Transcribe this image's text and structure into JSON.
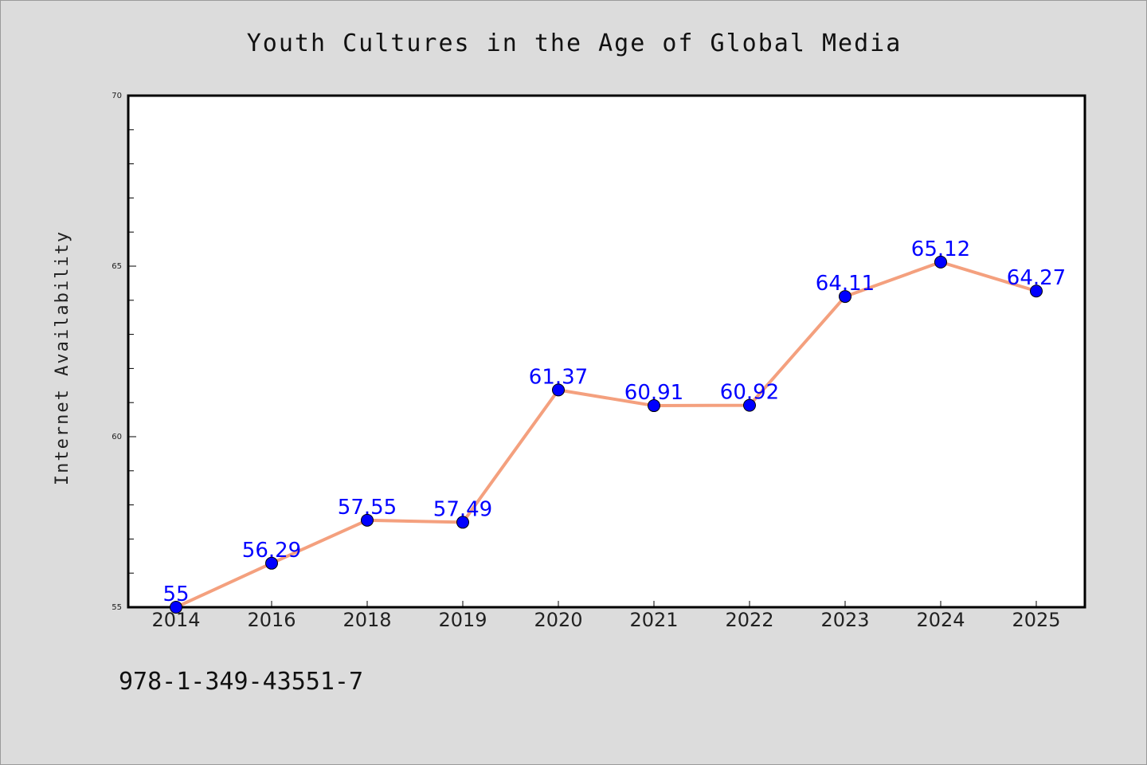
{
  "chart_data": {
    "type": "line",
    "title": "Youth Cultures in the Age of Global Media",
    "xlabel": "",
    "ylabel": "Internet Availability",
    "categories": [
      "2014",
      "2016",
      "2018",
      "2019",
      "2020",
      "2021",
      "2022",
      "2023",
      "2024",
      "2025"
    ],
    "series": [
      {
        "values": [
          55,
          56.29,
          57.55,
          57.49,
          61.37,
          60.91,
          60.92,
          64.11,
          65.12,
          64.27
        ],
        "data_labels": [
          "55",
          "56.29",
          "57.55",
          "57.49",
          "61.37",
          "60.91",
          "60.92",
          "64.11",
          "65.12",
          "64.27"
        ],
        "line_color": "#f4a07e",
        "marker_color": "#0000ff"
      }
    ],
    "ylim": [
      55,
      70
    ],
    "yticks": [
      "55",
      "60",
      "65",
      "70"
    ],
    "grid": false,
    "plot_background": "#ffffff",
    "figure_background": "#dcdcdc"
  },
  "footer": {
    "text": "978-1-349-43551-7"
  }
}
